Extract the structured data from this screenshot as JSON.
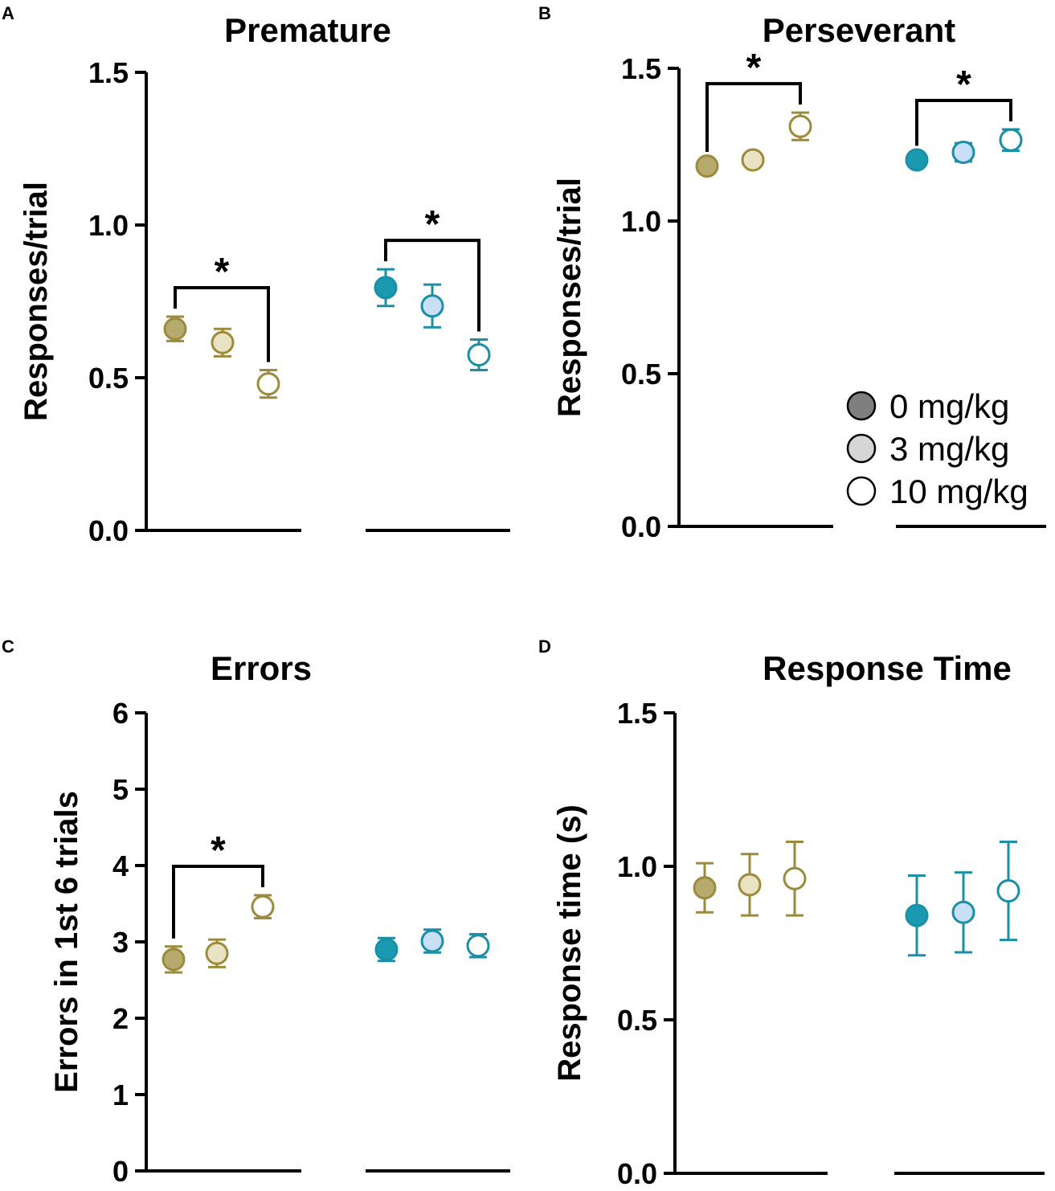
{
  "colors": {
    "olive_dark": "#B7AA6E",
    "olive_mid": "#E9E3C4",
    "olive_stroke": "#9C8B3C",
    "teal_dark": "#1A9AB0",
    "teal_mid": "#C9DFF5",
    "teal_stroke": "#1A8FA6",
    "legend_dark": "#7F7F7F",
    "legend_mid": "#D6D6D6",
    "axis": "#000000"
  },
  "legend": {
    "items": [
      {
        "label": "0 mg/kg",
        "swatch": "dark"
      },
      {
        "label": "3 mg/kg",
        "swatch": "mid"
      },
      {
        "label": "10 mg/kg",
        "swatch": "open"
      }
    ]
  },
  "chart_data": [
    {
      "panel": "A",
      "type": "scatter",
      "title": "Premature",
      "ylabel": "Responses/trial",
      "xlabel": "",
      "ylim": [
        0,
        1.5
      ],
      "yticks": [
        "0.0",
        "0.5",
        "1.0",
        "1.5"
      ],
      "groups": [
        {
          "name": "group-1",
          "color": "olive",
          "points": [
            {
              "dose": "0 mg/kg",
              "mean": 0.66,
              "err": 0.04
            },
            {
              "dose": "3 mg/kg",
              "mean": 0.615,
              "err": 0.045
            },
            {
              "dose": "10 mg/kg",
              "mean": 0.48,
              "err": 0.045
            }
          ]
        },
        {
          "name": "group-2",
          "color": "teal",
          "points": [
            {
              "dose": "0 mg/kg",
              "mean": 0.795,
              "err": 0.06
            },
            {
              "dose": "3 mg/kg",
              "mean": 0.735,
              "err": 0.07
            },
            {
              "dose": "10 mg/kg",
              "mean": 0.575,
              "err": 0.05
            }
          ]
        }
      ],
      "significance": [
        {
          "group": 0,
          "from": 0,
          "to": 2,
          "label": "*"
        },
        {
          "group": 1,
          "from": 0,
          "to": 2,
          "label": "*"
        }
      ]
    },
    {
      "panel": "B",
      "type": "scatter",
      "title": "Perseverant",
      "ylabel": "Responses/trial",
      "xlabel": "",
      "ylim": [
        0,
        1.5
      ],
      "yticks": [
        "0.0",
        "0.5",
        "1.0",
        "1.5"
      ],
      "groups": [
        {
          "name": "group-1",
          "color": "olive",
          "points": [
            {
              "dose": "0 mg/kg",
              "mean": 1.18,
              "err": 0.02
            },
            {
              "dose": "3 mg/kg",
              "mean": 1.2,
              "err": 0.02
            },
            {
              "dose": "10 mg/kg",
              "mean": 1.31,
              "err": 0.045
            }
          ]
        },
        {
          "name": "group-2",
          "color": "teal",
          "points": [
            {
              "dose": "0 mg/kg",
              "mean": 1.2,
              "err": 0.02
            },
            {
              "dose": "3 mg/kg",
              "mean": 1.225,
              "err": 0.03
            },
            {
              "dose": "10 mg/kg",
              "mean": 1.265,
              "err": 0.035
            }
          ]
        }
      ],
      "significance": [
        {
          "group": 0,
          "from": 0,
          "to": 2,
          "label": "*"
        },
        {
          "group": 1,
          "from": 0,
          "to": 2,
          "label": "*"
        }
      ]
    },
    {
      "panel": "C",
      "type": "scatter",
      "title": "Errors",
      "ylabel": "Errors in 1st 6 trials",
      "xlabel": "",
      "ylim": [
        0,
        6
      ],
      "yticks": [
        "0",
        "1",
        "2",
        "3",
        "4",
        "5",
        "6"
      ],
      "groups": [
        {
          "name": "group-1",
          "color": "olive",
          "points": [
            {
              "dose": "0 mg/kg",
              "mean": 2.77,
              "err": 0.17
            },
            {
              "dose": "3 mg/kg",
              "mean": 2.85,
              "err": 0.18
            },
            {
              "dose": "10 mg/kg",
              "mean": 3.46,
              "err": 0.15
            }
          ]
        },
        {
          "name": "group-2",
          "color": "teal",
          "points": [
            {
              "dose": "0 mg/kg",
              "mean": 2.9,
              "err": 0.15
            },
            {
              "dose": "3 mg/kg",
              "mean": 3.01,
              "err": 0.15
            },
            {
              "dose": "10 mg/kg",
              "mean": 2.95,
              "err": 0.15
            }
          ]
        }
      ],
      "significance": [
        {
          "group": 0,
          "from": 0,
          "to": 2,
          "label": "*"
        }
      ]
    },
    {
      "panel": "D",
      "type": "scatter",
      "title": "Response  Time",
      "ylabel": "Response time (s)",
      "xlabel": "",
      "ylim": [
        0,
        1.5
      ],
      "yticks": [
        "0.0",
        "0.5",
        "1.0",
        "1.5"
      ],
      "groups": [
        {
          "name": "group-1",
          "color": "olive",
          "points": [
            {
              "dose": "0 mg/kg",
              "mean": 0.93,
              "err": 0.08
            },
            {
              "dose": "3 mg/kg",
              "mean": 0.94,
              "err": 0.1
            },
            {
              "dose": "10 mg/kg",
              "mean": 0.96,
              "err": 0.12
            }
          ]
        },
        {
          "name": "group-2",
          "color": "teal",
          "points": [
            {
              "dose": "0 mg/kg",
              "mean": 0.84,
              "err": 0.13
            },
            {
              "dose": "3 mg/kg",
              "mean": 0.85,
              "err": 0.13
            },
            {
              "dose": "10 mg/kg",
              "mean": 0.92,
              "err": 0.16
            }
          ]
        }
      ],
      "significance": []
    }
  ]
}
